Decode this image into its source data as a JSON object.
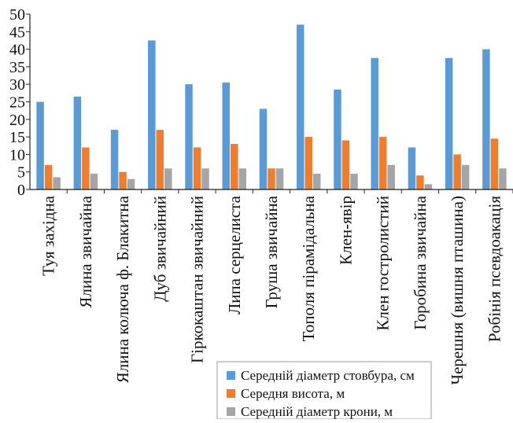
{
  "chart_data": {
    "type": "bar",
    "title": "",
    "xlabel": "",
    "ylabel": "",
    "ylim": [
      0,
      50
    ],
    "yticks": [
      0,
      5,
      10,
      15,
      20,
      25,
      30,
      35,
      40,
      45,
      50
    ],
    "grid": false,
    "legend_position": "bottom-right",
    "categories": [
      "Туя західна",
      "Ялина звичайна",
      "Ялина колюча ф. Блакитна",
      "Дуб звичайний",
      "Гіркокаштан звичайний",
      "Липа серцелиста",
      "Груша звичайна",
      "Тополя пірамідальна",
      "Клен-явір",
      "Клен гостролистий",
      "Горобина звичайна",
      "Черешня (вишня пташина)",
      "Робінія псевдоакація"
    ],
    "series": [
      {
        "name": "Середній діаметр стовбура, см",
        "color": "#5b9bd5",
        "values": [
          25,
          26.5,
          17,
          42.5,
          30,
          30.5,
          23,
          47,
          28.5,
          37.5,
          12,
          37.5,
          40
        ]
      },
      {
        "name": "Середня висота, м",
        "color": "#ed7d31",
        "values": [
          7,
          12,
          5,
          17,
          12,
          13,
          6,
          15,
          14,
          15,
          4,
          10,
          14.5
        ]
      },
      {
        "name": "Середній діаметр крони, м",
        "color": "#a5a5a5",
        "values": [
          3.5,
          4.5,
          3,
          6,
          6,
          6,
          6,
          4.5,
          4.5,
          7,
          1.5,
          7,
          6
        ]
      }
    ]
  }
}
